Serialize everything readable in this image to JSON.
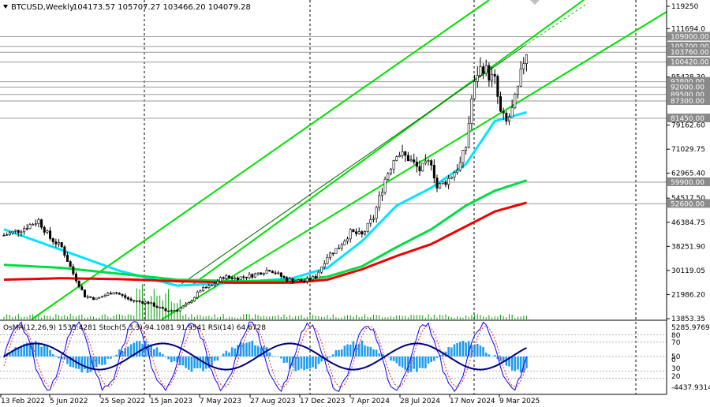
{
  "header": {
    "symbol": "BTCUSD,Weekly",
    "ohlc": "104173.57 105707.27 103466.20 104079.28"
  },
  "chart_data": {
    "type": "candlestick",
    "price_axis": {
      "ylim": [
        13853.33,
        119250
      ],
      "ticks": [
        119250,
        111694.0,
        95428.3,
        79162.6,
        71029.75,
        62965.4,
        54517.5,
        46384.75,
        38251.9,
        30119.05,
        21986.2,
        13853.35
      ],
      "tick_labels": [
        "119250",
        "111694.0",
        "95428.30",
        "79162.60",
        "71029.75",
        "62965.40",
        "54517.50",
        "46384.75",
        "38251.90",
        "30119.05",
        "21986.20",
        "13853.35"
      ]
    },
    "levels": [
      {
        "value": 109000,
        "label": "109000.00"
      },
      {
        "value": 105700,
        "label": "105700.00"
      },
      {
        "value": 103760,
        "label": "103760.00"
      },
      {
        "value": 100420,
        "label": "100420.00"
      },
      {
        "value": 93800,
        "label": "93800.00"
      },
      {
        "value": 92000,
        "label": "92000.00"
      },
      {
        "value": 89500,
        "label": "89500.00"
      },
      {
        "value": 87300,
        "label": "87300.00"
      },
      {
        "value": 81450,
        "label": "81450.00"
      },
      {
        "value": 59900,
        "label": "59900.00"
      },
      {
        "value": 52600,
        "label": "52600.00"
      }
    ],
    "time_labels": [
      "13 Feb 2022",
      "5 Jun 2022",
      "25 Sep 2022",
      "15 Jan 2023",
      "7 May 2023",
      "27 Aug 2023",
      "17 Dec 2023",
      "7 Apr 2024",
      "28 Jul 2024",
      "17 Nov 2024",
      "9 Mar 2025"
    ],
    "bars_count": 175,
    "price_path": [
      [
        0,
        42000
      ],
      [
        6,
        44000
      ],
      [
        12,
        47000
      ],
      [
        16,
        41000
      ],
      [
        20,
        38000
      ],
      [
        24,
        29000
      ],
      [
        28,
        21500
      ],
      [
        32,
        20500
      ],
      [
        38,
        23000
      ],
      [
        44,
        20000
      ],
      [
        50,
        19200
      ],
      [
        56,
        16500
      ],
      [
        60,
        16800
      ],
      [
        64,
        19000
      ],
      [
        68,
        23500
      ],
      [
        72,
        25000
      ],
      [
        76,
        28000
      ],
      [
        80,
        27500
      ],
      [
        86,
        28500
      ],
      [
        92,
        30500
      ],
      [
        98,
        27000
      ],
      [
        104,
        26500
      ],
      [
        108,
        28000
      ],
      [
        112,
        35000
      ],
      [
        116,
        38000
      ],
      [
        120,
        43000
      ],
      [
        124,
        42000
      ],
      [
        128,
        48000
      ],
      [
        132,
        61000
      ],
      [
        136,
        70000
      ],
      [
        140,
        68000
      ],
      [
        144,
        64000
      ],
      [
        148,
        67000
      ],
      [
        150,
        58000
      ],
      [
        154,
        61000
      ],
      [
        158,
        66000
      ],
      [
        160,
        72000
      ],
      [
        162,
        88000
      ],
      [
        164,
        97000
      ],
      [
        166,
        99000
      ],
      [
        168,
        96000
      ],
      [
        170,
        94000
      ],
      [
        172,
        83000
      ],
      [
        174,
        80000
      ],
      [
        176,
        84000
      ],
      [
        178,
        91000
      ],
      [
        180,
        101000
      ],
      [
        181,
        104079
      ]
    ],
    "moving_averages": [
      {
        "color": "#00e5ff",
        "path": [
          [
            0,
            44000
          ],
          [
            20,
            37000
          ],
          [
            40,
            30000
          ],
          [
            60,
            25000
          ],
          [
            80,
            26000
          ],
          [
            100,
            27500
          ],
          [
            112,
            31000
          ],
          [
            124,
            40000
          ],
          [
            136,
            52000
          ],
          [
            148,
            58000
          ],
          [
            160,
            66000
          ],
          [
            170,
            80500
          ],
          [
            181,
            83500
          ]
        ]
      },
      {
        "color": "#00dd44",
        "path": [
          [
            0,
            32000
          ],
          [
            20,
            31000
          ],
          [
            40,
            29000
          ],
          [
            60,
            27000
          ],
          [
            80,
            26500
          ],
          [
            100,
            26800
          ],
          [
            112,
            28000
          ],
          [
            124,
            31500
          ],
          [
            136,
            38000
          ],
          [
            148,
            44000
          ],
          [
            160,
            52000
          ],
          [
            170,
            57000
          ],
          [
            181,
            60500
          ]
        ]
      },
      {
        "color": "#ee0000",
        "path": [
          [
            0,
            27000
          ],
          [
            20,
            27500
          ],
          [
            40,
            27200
          ],
          [
            60,
            26500
          ],
          [
            80,
            26000
          ],
          [
            100,
            26000
          ],
          [
            112,
            27000
          ],
          [
            124,
            30500
          ],
          [
            136,
            35000
          ],
          [
            148,
            39000
          ],
          [
            160,
            45000
          ],
          [
            170,
            50000
          ],
          [
            181,
            53000
          ]
        ]
      }
    ],
    "indicator": {
      "label": "OsMA(12,26,9) 1535.4281  Stoch(5,3,3) 94.1081 91.9541  RSI(14) 64.6728",
      "axis_labels": [
        "5285.9769",
        "80",
        "70",
        "50",
        "0",
        "30",
        "20",
        "-4437.9314"
      ]
    }
  }
}
